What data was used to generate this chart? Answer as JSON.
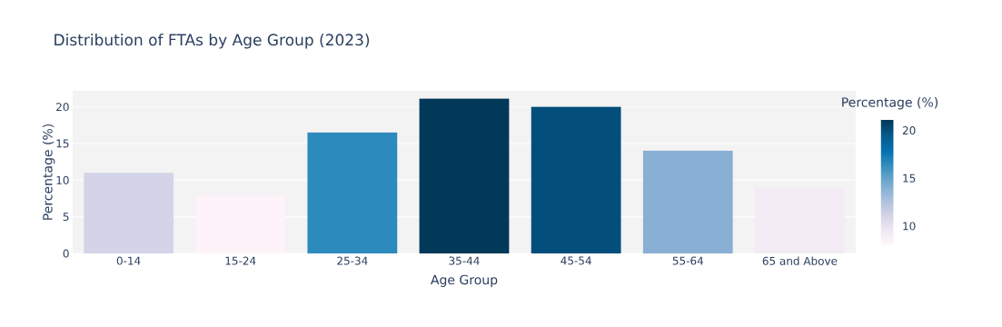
{
  "chart_data": {
    "type": "bar",
    "title": "Distribution of FTAs by Age Group (2023)",
    "xlabel": "Age Group",
    "ylabel": "Percentage (%)",
    "clabel": "Percentage (%)",
    "categories": [
      "0-14",
      "15-24",
      "25-34",
      "35-44",
      "45-54",
      "55-64",
      "65 and Above"
    ],
    "values": [
      11,
      8,
      16.5,
      21.1,
      20,
      14,
      9
    ],
    "colors": [
      "#d4d4e8",
      "#fdf3f9",
      "#2d8abd",
      "#023858",
      "#034e7b",
      "#8aafd4",
      "#f3ecf4"
    ],
    "ylim": [
      0,
      22.2
    ],
    "yticks": [
      0,
      5,
      10,
      15,
      20
    ],
    "grid": "y",
    "clim": [
      8,
      21.1
    ],
    "cticks": [
      10,
      15,
      20
    ]
  }
}
